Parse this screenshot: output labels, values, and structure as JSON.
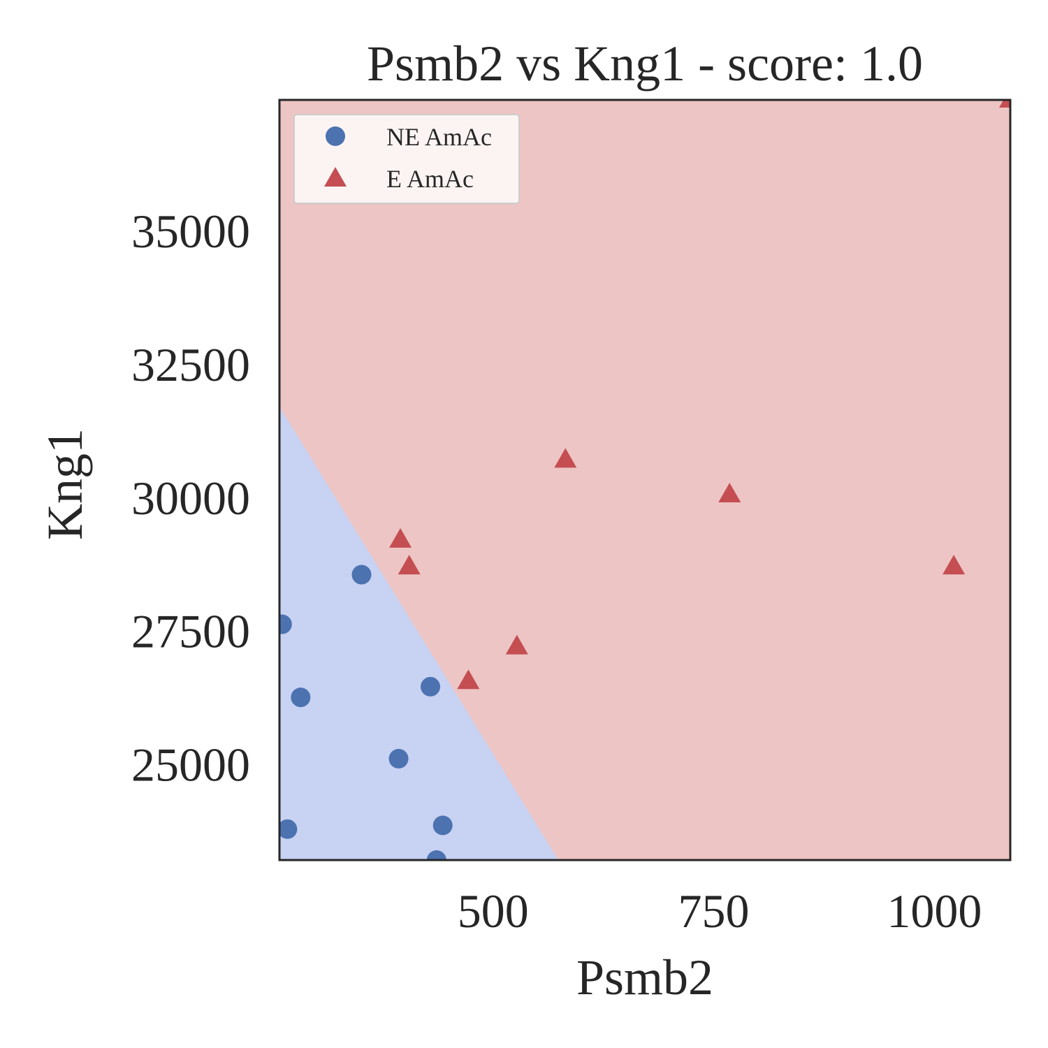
{
  "chart_data": {
    "type": "scatter",
    "title": "Psmb2 vs Kng1 - score: 1.0",
    "xlabel": "Psmb2",
    "ylabel": "Kng1",
    "xlim": [
      258,
      1086
    ],
    "ylim": [
      23200,
      37450
    ],
    "x_ticks": [
      500,
      750,
      1000
    ],
    "y_ticks": [
      25000,
      27500,
      30000,
      32500,
      35000
    ],
    "grid": false,
    "legend_position": "upper-left",
    "colors": {
      "ne_marker": "#4C72B0",
      "e_marker": "#C44E52",
      "ne_region": "#C8D2F2",
      "e_region": "#EDC5C4",
      "axes": "#262626"
    },
    "decision_boundary": {
      "points": [
        {
          "x": 258,
          "y": 31700
        },
        {
          "x": 574,
          "y": 23200
        }
      ],
      "lower_left_class": "NE AmAc",
      "upper_right_class": "E AmAc"
    },
    "series": [
      {
        "name": "NE AmAc",
        "marker": "circle",
        "points": [
          {
            "x": 351,
            "y": 28550
          },
          {
            "x": 261,
            "y": 27620
          },
          {
            "x": 282,
            "y": 26250
          },
          {
            "x": 429,
            "y": 26450
          },
          {
            "x": 393,
            "y": 25100
          },
          {
            "x": 267,
            "y": 23780
          },
          {
            "x": 443,
            "y": 23850
          },
          {
            "x": 436,
            "y": 23200
          }
        ]
      },
      {
        "name": "E AmAc",
        "marker": "triangle",
        "points": [
          {
            "x": 582,
            "y": 30700
          },
          {
            "x": 768,
            "y": 30050
          },
          {
            "x": 395,
            "y": 29200
          },
          {
            "x": 405,
            "y": 28700
          },
          {
            "x": 1022,
            "y": 28700
          },
          {
            "x": 527,
            "y": 27200
          },
          {
            "x": 472,
            "y": 26550
          },
          {
            "x": 1086,
            "y": 37450
          }
        ]
      }
    ]
  }
}
